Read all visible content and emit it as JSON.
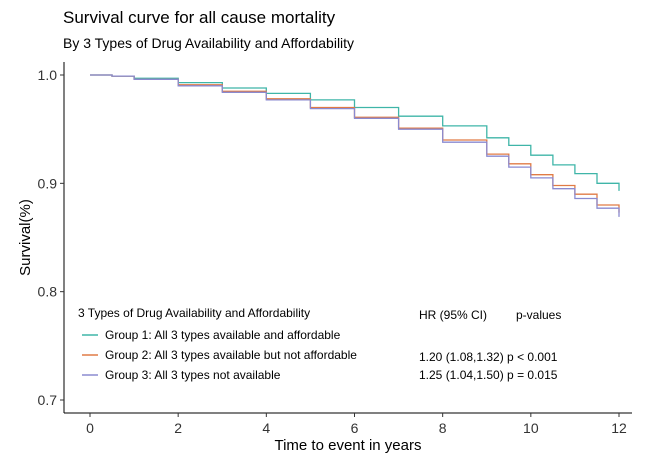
{
  "chart_data": {
    "type": "line",
    "title": "Survival curve for all cause mortality",
    "subtitle": "By 3 Types of Drug Availability and Affordability",
    "xlabel": "Time to event in years",
    "ylabel": "Survival(%)",
    "xlim": [
      0,
      12
    ],
    "ylim": [
      0.7,
      1.0
    ],
    "xticks": [
      0,
      2,
      4,
      6,
      8,
      10,
      12
    ],
    "yticks": [
      0.7,
      0.8,
      0.9,
      1.0
    ],
    "ytick_labels": [
      "0.7",
      "0.8",
      "0.9",
      "1.0"
    ],
    "grid": false,
    "legend_title": "3 Types of Drug Availability and Affordability",
    "legend_position": "bottom-left inside",
    "series": [
      {
        "name": "Group 1: All 3 types available and affordable",
        "color": "#3fb5a8",
        "x": [
          0,
          0.5,
          1,
          2,
          3,
          4,
          5,
          6,
          7,
          8,
          9,
          9.5,
          10,
          10.5,
          11,
          11.5,
          12
        ],
        "y": [
          1.0,
          0.999,
          0.997,
          0.993,
          0.988,
          0.983,
          0.977,
          0.97,
          0.962,
          0.953,
          0.942,
          0.935,
          0.926,
          0.917,
          0.909,
          0.9,
          0.893
        ]
      },
      {
        "name": "Group 2: All 3 types available but not affordable",
        "color": "#e07b45",
        "x": [
          0,
          0.5,
          1,
          2,
          3,
          4,
          5,
          6,
          7,
          8,
          9,
          9.5,
          10,
          10.5,
          11,
          11.5,
          12
        ],
        "y": [
          1.0,
          0.999,
          0.996,
          0.991,
          0.985,
          0.978,
          0.97,
          0.961,
          0.951,
          0.94,
          0.927,
          0.918,
          0.908,
          0.898,
          0.89,
          0.88,
          0.873
        ]
      },
      {
        "name": "Group 3: All 3 types not available",
        "color": "#8a8ad0",
        "x": [
          0,
          0.5,
          1,
          2,
          3,
          4,
          5,
          6,
          7,
          8,
          9,
          9.5,
          10,
          10.5,
          11,
          11.5,
          12
        ],
        "y": [
          1.0,
          0.999,
          0.996,
          0.99,
          0.984,
          0.977,
          0.969,
          0.96,
          0.95,
          0.938,
          0.925,
          0.915,
          0.905,
          0.895,
          0.886,
          0.877,
          0.869
        ]
      }
    ],
    "annotations": {
      "hr_header": "HR (95% CI)",
      "pvalue_header": "p-values",
      "rows": [
        {
          "hr": "1.20 (1.08,1.32)",
          "p": "p < 0.001"
        },
        {
          "hr": "1.25 (1.04,1.50)",
          "p": "p = 0.015"
        }
      ]
    }
  }
}
